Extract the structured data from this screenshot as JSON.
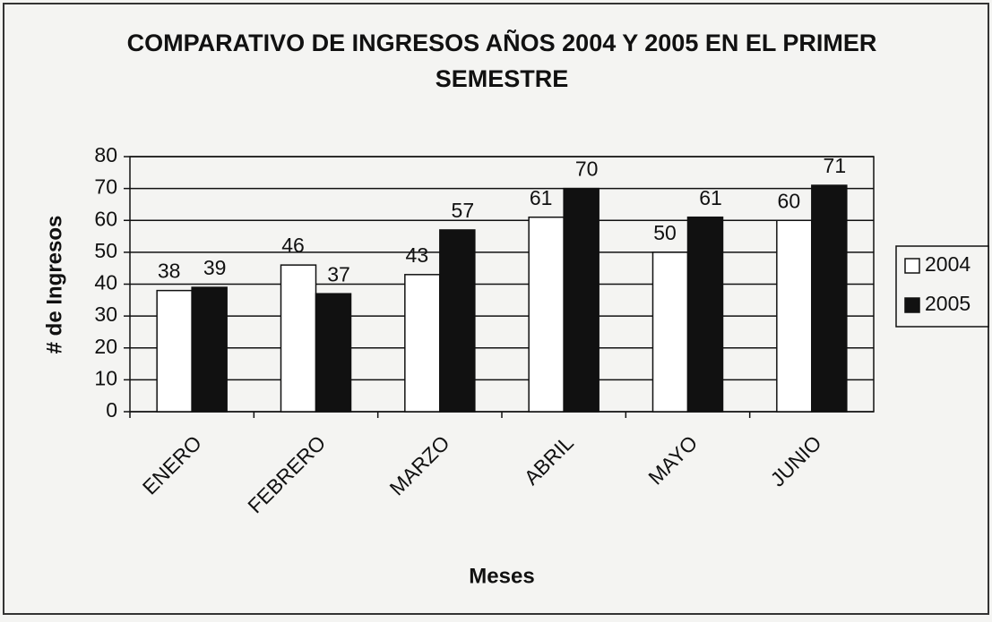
{
  "chart_data": {
    "type": "bar",
    "title": "COMPARATIVO DE INGRESOS AÑOS 2004 Y 2005 EN EL PRIMER SEMESTRE",
    "x_label": "Meses",
    "y_label": "# de Ingresos",
    "categories": [
      "ENERO",
      "FEBRERO",
      "MARZO",
      "ABRIL",
      "MAYO",
      "JUNIO"
    ],
    "series": [
      {
        "name": "2004",
        "color": "#ffffff",
        "values": [
          38,
          46,
          43,
          61,
          50,
          60
        ]
      },
      {
        "name": "2005",
        "color": "#111111",
        "values": [
          39,
          37,
          57,
          70,
          61,
          71
        ]
      }
    ],
    "ylim": [
      0,
      80
    ],
    "yticks": [
      0,
      10,
      20,
      30,
      40,
      50,
      60,
      70,
      80
    ],
    "grid": true,
    "legend": "right"
  }
}
